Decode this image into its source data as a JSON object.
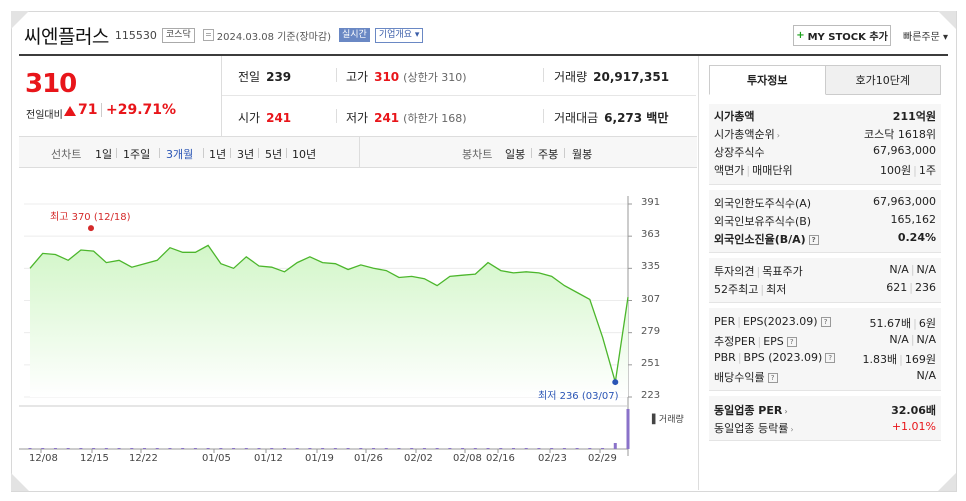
{
  "header": {
    "company": "씨엔플러스",
    "code": "115530",
    "market_tag": "코스닥",
    "date": "2024.03.08 기준(장마감)",
    "realtime_label": "실시간",
    "overview_label": "기업개요 ▾",
    "mystock_label": "MY STOCK 추가",
    "quick_order_label": "빠른주문 ▾"
  },
  "price": {
    "current": "310",
    "prev_label": "전일대비",
    "change": "71",
    "change_pct": "+29.71%"
  },
  "quote": {
    "prev_close_label": "전일",
    "prev_close": "239",
    "high_label": "고가",
    "high": "310",
    "upper_limit": "(상한가 310)",
    "volume_label": "거래량",
    "volume": "20,917,351",
    "open_label": "시가",
    "open": "241",
    "low_label": "저가",
    "low": "241",
    "lower_limit": "(하한가 168)",
    "amount_label": "거래대금",
    "amount": "6,273 백만"
  },
  "periods": {
    "line_label": "선차트",
    "items": [
      "1일",
      "1주일",
      "3개월",
      "1년",
      "3년",
      "5년",
      "10년"
    ],
    "selected": "3개월",
    "candle_label": "봉차트",
    "candle_items": [
      "일봉",
      "주봉",
      "월봉"
    ]
  },
  "chart_data": {
    "type": "area",
    "y_ticks": [
      391,
      363,
      335,
      307,
      279,
      251,
      223
    ],
    "ylim": [
      223,
      391
    ],
    "x_tick_labels": [
      "12/08",
      "12/15",
      "12/22",
      "01/05",
      "01/12",
      "01/19",
      "01/26",
      "02/02",
      "02/08",
      "02/16",
      "02/23",
      "02/29"
    ],
    "values": [
      335,
      348,
      347,
      342,
      351,
      350,
      340,
      342,
      336,
      339,
      342,
      353,
      349,
      349,
      355,
      339,
      335,
      345,
      337,
      336,
      332,
      340,
      345,
      340,
      339,
      334,
      338,
      335,
      333,
      327,
      328,
      326,
      320,
      328,
      329,
      330,
      340,
      333,
      331,
      332,
      331,
      328,
      320,
      314,
      308,
      275,
      236,
      310
    ],
    "high_annotation": "최고 370 (12/18)",
    "low_annotation": "최저 236 (03/07)",
    "volume_label": "거래량",
    "colors": {
      "line": "#4cb62c",
      "fill_top": "#d2f6c8",
      "fill_bottom": "#ffffff",
      "volume": "#8a72c9",
      "high": "#d42a2a",
      "low": "#2a55b5"
    }
  },
  "invest": {
    "tab_active": "투자정보",
    "tab_other": "호가10단계",
    "sec1": [
      {
        "k": "시가총액",
        "v": "211억원"
      },
      {
        "k": "시가총액순위",
        "v": "코스닥 1618위"
      },
      {
        "k": "상장주식수",
        "v": "67,963,000"
      },
      {
        "k": "액면가",
        "k2": "매매단위",
        "v": "100원",
        "v2": "1주"
      }
    ],
    "sec2": [
      {
        "k": "외국인한도주식수(A)",
        "v": "67,963,000"
      },
      {
        "k": "외국인보유주식수(B)",
        "v": "165,162"
      },
      {
        "k": "외국인소진율(B/A)",
        "v": "0.24%"
      }
    ],
    "sec3": [
      {
        "k": "투자의견",
        "k2": "목표주가",
        "v": "N/A",
        "v2": "N/A"
      },
      {
        "k": "52주최고",
        "k2": "최저",
        "v": "621",
        "v2": "236"
      }
    ],
    "sec4": [
      {
        "k": "PER",
        "k2": "EPS(2023.09)",
        "v": "51.67배",
        "v2": "6원"
      },
      {
        "k": "추정PER",
        "k2": "EPS",
        "v": "N/A",
        "v2": "N/A"
      },
      {
        "k": "PBR",
        "k2": "BPS (2023.09)",
        "v": "1.83배",
        "v2": "169원"
      },
      {
        "k": "배당수익률",
        "v": "N/A"
      }
    ],
    "sec5": [
      {
        "k": "동일업종 PER",
        "v": "32.06배"
      },
      {
        "k": "동일업종 등락률",
        "v": "+1.01%"
      }
    ]
  }
}
